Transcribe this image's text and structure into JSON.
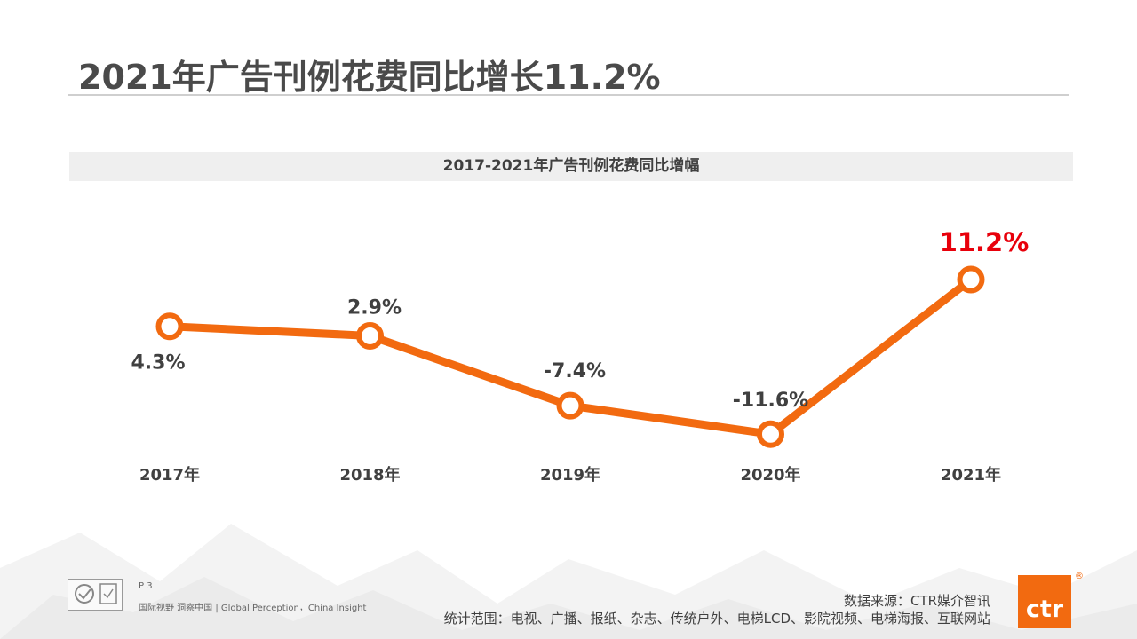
{
  "page": {
    "title": "2021年广告刊例花费同比增长11.2%",
    "page_number": "P 3",
    "slogan": "国际视野 洞察中国 | Global Perception，China Insight",
    "source": "数据来源：CTR媒介智讯",
    "scope": "统计范围：电视、广播、报纸、杂志、传统户外、电梯LCD、影院视频、电梯海报、互联网站",
    "brand": "ctr",
    "brand_mark": "®"
  },
  "colors": {
    "line": "#f26a10",
    "highlight_label": "#e8000b",
    "label": "#404040"
  },
  "icons": {
    "certification": "certification-badge-icon",
    "brand": "ctr-logo-icon"
  },
  "chart_data": {
    "type": "line",
    "title": "2017-2021年广告刊例花费同比增幅",
    "categories": [
      "2017年",
      "2018年",
      "2019年",
      "2020年",
      "2021年"
    ],
    "values": [
      4.3,
      2.9,
      -7.4,
      -11.6,
      11.2
    ],
    "value_labels": [
      "4.3%",
      "2.9%",
      "-7.4%",
      "-11.6%",
      "11.2%"
    ],
    "highlight_index": 4,
    "ylim": [
      -15,
      15
    ],
    "grid": false,
    "legend": "none"
  }
}
